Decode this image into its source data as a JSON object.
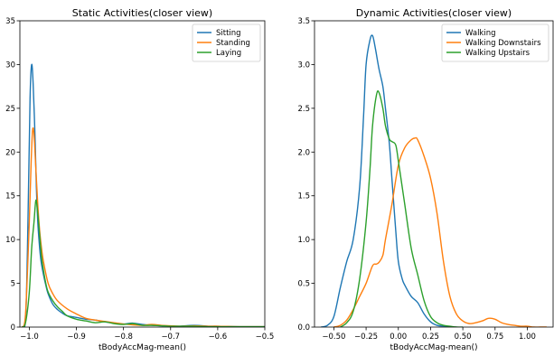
{
  "colors": {
    "blue": "#1f77b4",
    "orange": "#ff7f0e",
    "green": "#2ca02c"
  },
  "chart_data": [
    {
      "type": "line",
      "title": "Static Activities(closer view)",
      "xlabel": "tBodyAccMag-mean()",
      "ylabel": "",
      "xlim": [
        -1.02,
        -0.5
      ],
      "ylim": [
        0,
        35
      ],
      "xticks": [
        -1.0,
        -0.9,
        -0.8,
        -0.7,
        -0.6,
        -0.5
      ],
      "xtick_labels": [
        "−1.0",
        "−0.9",
        "−0.8",
        "−0.7",
        "−0.6",
        "−0.5"
      ],
      "yticks": [
        0,
        5,
        10,
        15,
        20,
        25,
        30,
        35
      ],
      "ytick_labels": [
        "0",
        "5",
        "10",
        "15",
        "20",
        "25",
        "30",
        "35"
      ],
      "legend_position": "top-right",
      "series": [
        {
          "name": "Sitting",
          "color": "#1f77b4",
          "x": [
            -1.015,
            -1.007,
            -1.0,
            -0.998,
            -0.995,
            -0.992,
            -0.988,
            -0.985,
            -0.982,
            -0.978,
            -0.975,
            -0.97,
            -0.965,
            -0.96,
            -0.95,
            -0.94,
            -0.93,
            -0.92,
            -0.9,
            -0.88,
            -0.86,
            -0.84,
            -0.82,
            -0.8,
            -0.78,
            -0.76,
            -0.74,
            -0.72,
            -0.7,
            -0.68,
            -0.65,
            -0.62,
            -0.6,
            -0.55,
            -0.5
          ],
          "y": [
            0,
            2,
            21,
            27,
            30,
            28,
            22,
            16,
            12,
            9,
            7.5,
            6,
            4.8,
            3.8,
            2.6,
            2,
            1.6,
            1.3,
            1.1,
            0.9,
            0.8,
            0.6,
            0.45,
            0.35,
            0.45,
            0.3,
            0.2,
            0.15,
            0.1,
            0.1,
            0.2,
            0.1,
            0.1,
            0.05,
            0.05
          ]
        },
        {
          "name": "Standing",
          "color": "#ff7f0e",
          "x": [
            -1.015,
            -1.008,
            -1.0,
            -0.996,
            -0.993,
            -0.99,
            -0.986,
            -0.982,
            -0.978,
            -0.974,
            -0.97,
            -0.96,
            -0.95,
            -0.94,
            -0.92,
            -0.9,
            -0.88,
            -0.86,
            -0.84,
            -0.82,
            -0.8,
            -0.78,
            -0.76,
            -0.74,
            -0.72,
            -0.7,
            -0.68,
            -0.65,
            -0.62,
            -0.6,
            -0.55,
            -0.5
          ],
          "y": [
            0,
            1.5,
            12,
            19,
            22.5,
            22,
            18,
            14,
            11,
            9,
            7.5,
            5,
            3.8,
            3,
            2.1,
            1.5,
            1,
            0.8,
            0.65,
            0.5,
            0.35,
            0.25,
            0.2,
            0.3,
            0.2,
            0.15,
            0.1,
            0.15,
            0.1,
            0.1,
            0.05,
            0.05
          ]
        },
        {
          "name": "Laying",
          "color": "#2ca02c",
          "x": [
            -1.015,
            -1.008,
            -1.0,
            -0.995,
            -0.99,
            -0.986,
            -0.982,
            -0.978,
            -0.974,
            -0.97,
            -0.965,
            -0.96,
            -0.95,
            -0.94,
            -0.93,
            -0.92,
            -0.9,
            -0.88,
            -0.86,
            -0.84,
            -0.82,
            -0.8,
            -0.78,
            -0.76,
            -0.74,
            -0.72,
            -0.7,
            -0.68,
            -0.65,
            -0.62,
            -0.6,
            -0.55,
            -0.5
          ],
          "y": [
            0,
            0.5,
            4,
            9,
            12,
            14.5,
            13,
            10.5,
            8,
            6.5,
            5,
            4,
            3,
            2.3,
            1.8,
            1.3,
            0.9,
            0.7,
            0.5,
            0.6,
            0.4,
            0.3,
            0.4,
            0.2,
            0.2,
            0.15,
            0.1,
            0.1,
            0.1,
            0.05,
            0.05,
            0.05,
            0.05
          ]
        }
      ]
    },
    {
      "type": "line",
      "title": "Dynamic Activities(closer view)",
      "xlabel": "tBodyAccMag-mean()",
      "ylabel": "",
      "xlim": [
        -0.65,
        1.2
      ],
      "ylim": [
        0,
        3.5
      ],
      "xticks": [
        -0.5,
        -0.25,
        0.0,
        0.25,
        0.5,
        0.75,
        1.0
      ],
      "xtick_labels": [
        "−0.50",
        "−0.25",
        "0.00",
        "0.25",
        "0.50",
        "0.75",
        "1.00"
      ],
      "yticks": [
        0,
        0.5,
        1.0,
        1.5,
        2.0,
        2.5,
        3.0,
        3.5
      ],
      "ytick_labels": [
        "0.0",
        "0.5",
        "1.0",
        "1.5",
        "2.0",
        "2.5",
        "3.0",
        "3.5"
      ],
      "legend_position": "top-right",
      "series": [
        {
          "name": "Walking",
          "color": "#1f77b4",
          "x": [
            -0.6,
            -0.55,
            -0.5,
            -0.45,
            -0.4,
            -0.35,
            -0.3,
            -0.27,
            -0.25,
            -0.22,
            -0.2,
            -0.18,
            -0.15,
            -0.12,
            -0.1,
            -0.07,
            -0.05,
            -0.02,
            0.0,
            0.03,
            0.05,
            0.1,
            0.15,
            0.2,
            0.25,
            0.3,
            0.35,
            0.4,
            0.45
          ],
          "y": [
            0,
            0.02,
            0.12,
            0.45,
            0.75,
            1.0,
            1.6,
            2.4,
            3.0,
            3.28,
            3.33,
            3.2,
            2.95,
            2.75,
            2.5,
            2.1,
            1.7,
            1.1,
            0.75,
            0.55,
            0.48,
            0.35,
            0.28,
            0.15,
            0.06,
            0.02,
            0.01,
            0.0,
            0.0
          ]
        },
        {
          "name": "Walking Downstairs",
          "color": "#ff7f0e",
          "x": [
            -0.5,
            -0.45,
            -0.4,
            -0.35,
            -0.3,
            -0.25,
            -0.2,
            -0.17,
            -0.15,
            -0.12,
            -0.1,
            -0.05,
            0.0,
            0.05,
            0.1,
            0.13,
            0.15,
            0.2,
            0.25,
            0.3,
            0.35,
            0.4,
            0.45,
            0.5,
            0.55,
            0.6,
            0.65,
            0.7,
            0.75,
            0.8,
            0.85,
            0.9,
            0.95,
            1.0,
            1.05,
            1.1,
            1.15
          ],
          "y": [
            0,
            0.02,
            0.08,
            0.2,
            0.35,
            0.5,
            0.7,
            0.72,
            0.74,
            0.82,
            1.0,
            1.4,
            1.85,
            2.05,
            2.14,
            2.16,
            2.14,
            1.95,
            1.7,
            1.3,
            0.75,
            0.35,
            0.15,
            0.07,
            0.04,
            0.05,
            0.07,
            0.1,
            0.09,
            0.05,
            0.03,
            0.02,
            0.01,
            0.01,
            0.0,
            0.0,
            0.0
          ]
        },
        {
          "name": "Walking Upstairs",
          "color": "#2ca02c",
          "x": [
            -0.45,
            -0.4,
            -0.35,
            -0.3,
            -0.25,
            -0.22,
            -0.2,
            -0.17,
            -0.15,
            -0.12,
            -0.1,
            -0.07,
            -0.05,
            -0.02,
            0.0,
            0.03,
            0.05,
            0.1,
            0.15,
            0.2,
            0.25,
            0.3,
            0.35,
            0.4,
            0.45,
            0.5
          ],
          "y": [
            0,
            0.05,
            0.18,
            0.55,
            1.2,
            1.8,
            2.3,
            2.65,
            2.68,
            2.5,
            2.3,
            2.15,
            2.12,
            2.08,
            1.9,
            1.6,
            1.4,
            0.9,
            0.6,
            0.3,
            0.12,
            0.05,
            0.02,
            0.01,
            0.0,
            0.0
          ]
        }
      ]
    }
  ]
}
